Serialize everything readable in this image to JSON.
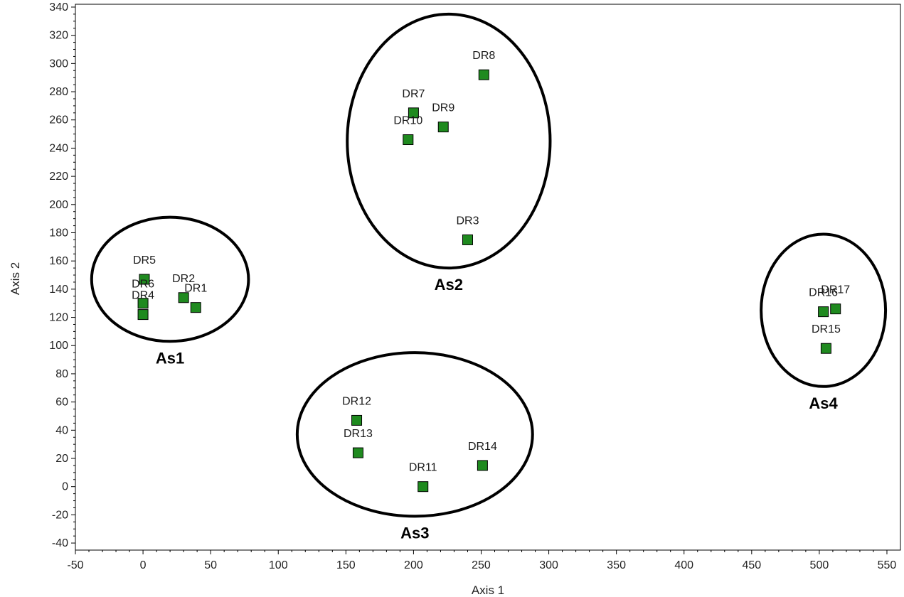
{
  "chart_data": {
    "type": "scatter",
    "xlabel": "Axis 1",
    "ylabel": "Axis 2",
    "xlim": [
      -50,
      560
    ],
    "ylim": [
      -45,
      342
    ],
    "x_ticks": [
      -50,
      0,
      50,
      100,
      150,
      200,
      250,
      300,
      350,
      400,
      450,
      500,
      550
    ],
    "y_ticks": [
      -40,
      -20,
      0,
      20,
      40,
      60,
      80,
      100,
      120,
      140,
      160,
      180,
      200,
      220,
      240,
      260,
      280,
      300,
      320,
      340
    ],
    "marker": "square",
    "marker_color": "#1f8a1f",
    "grid": false,
    "points": [
      {
        "label": "DR1",
        "x": 39,
        "y": 127
      },
      {
        "label": "DR2",
        "x": 30,
        "y": 134
      },
      {
        "label": "DR3",
        "x": 240,
        "y": 175
      },
      {
        "label": "DR4",
        "x": 0,
        "y": 122
      },
      {
        "label": "DR5",
        "x": 1,
        "y": 147
      },
      {
        "label": "DR6",
        "x": 0,
        "y": 130
      },
      {
        "label": "DR7",
        "x": 200,
        "y": 265
      },
      {
        "label": "DR8",
        "x": 252,
        "y": 292
      },
      {
        "label": "DR9",
        "x": 222,
        "y": 255
      },
      {
        "label": "DR10",
        "x": 196,
        "y": 246
      },
      {
        "label": "DR11",
        "x": 207,
        "y": 0
      },
      {
        "label": "DR12",
        "x": 158,
        "y": 47
      },
      {
        "label": "DR13",
        "x": 159,
        "y": 24
      },
      {
        "label": "DR14",
        "x": 251,
        "y": 15
      },
      {
        "label": "DR15",
        "x": 505,
        "y": 98
      },
      {
        "label": "DR16",
        "x": 503,
        "y": 124
      },
      {
        "label": "DR17",
        "x": 512,
        "y": 126
      }
    ],
    "clusters": [
      {
        "label": "As1",
        "cx": 20,
        "cy": 147,
        "rx": 58,
        "ry": 44
      },
      {
        "label": "As2",
        "cx": 226,
        "cy": 245,
        "rx": 75,
        "ry": 90
      },
      {
        "label": "As3",
        "cx": 201,
        "cy": 37,
        "rx": 87,
        "ry": 58
      },
      {
        "label": "As4",
        "cx": 503,
        "cy": 125,
        "rx": 46,
        "ry": 54
      }
    ]
  }
}
